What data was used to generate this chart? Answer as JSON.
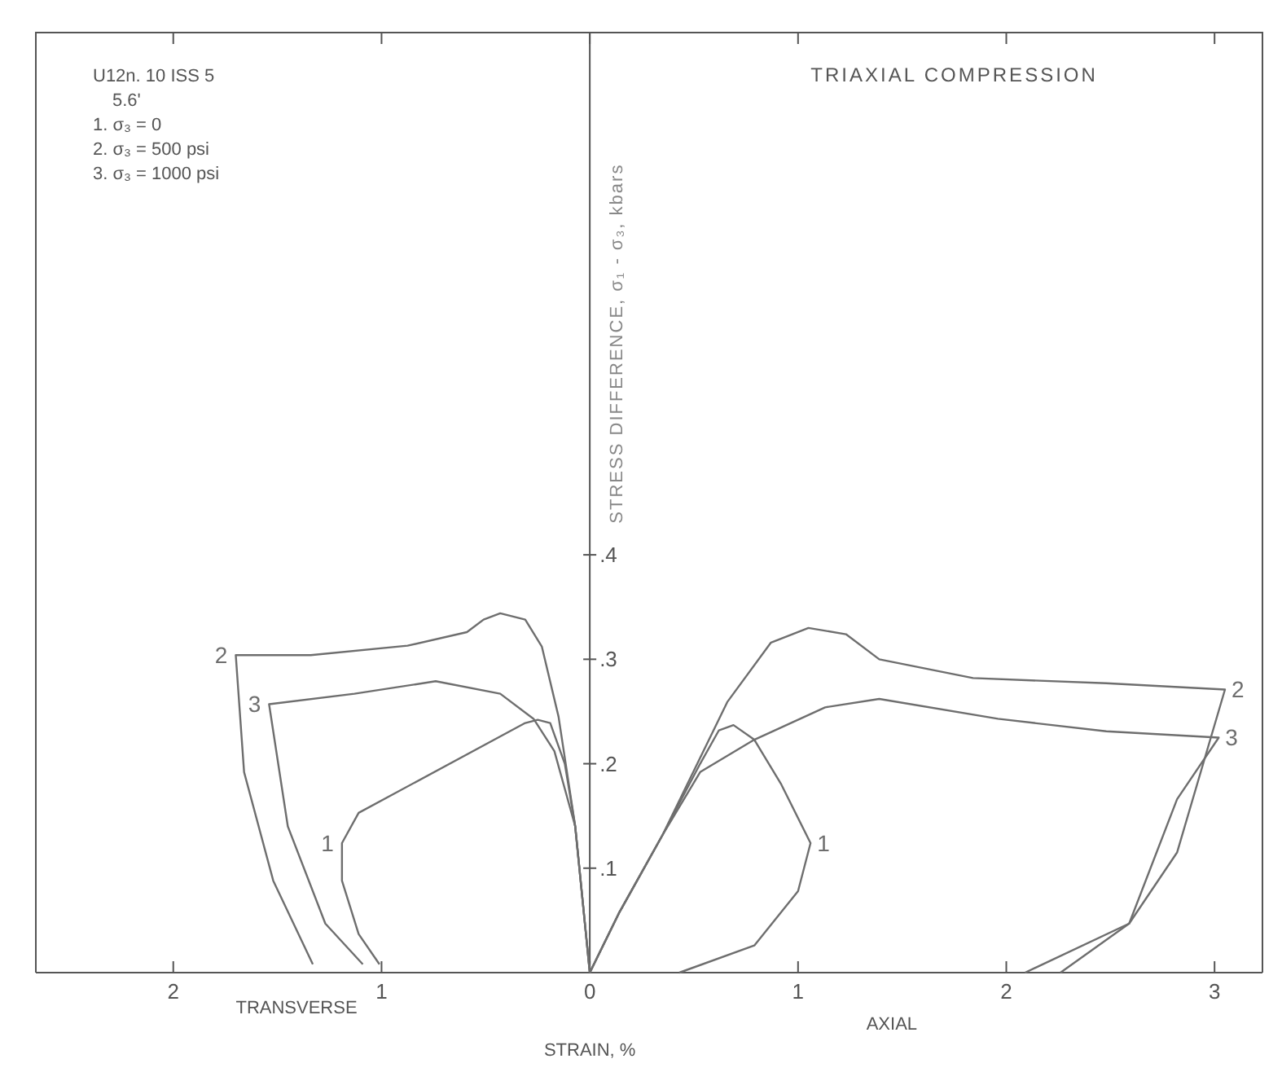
{
  "chart_data": {
    "type": "line",
    "title": "TRIAXIAL COMPRESSION",
    "xlabel": "STRAIN, %",
    "ylabel": "STRESS DIFFERENCE, σ₁ - σ₃, kbars",
    "annotations": [
      "U12n. 10 ISS 5",
      "5.6'",
      "1. σ₃ = 0",
      "2. σ₃ = 500 psi",
      "3. σ₃ = 1000 psi",
      "TRANSVERSE",
      "AXIAL"
    ],
    "xlim": [
      -2.66,
      3.23
    ],
    "ylim": [
      0,
      0.9
    ],
    "xticks": [
      {
        "value": -2,
        "label": "2"
      },
      {
        "value": -1,
        "label": "1"
      },
      0,
      1,
      2,
      3
    ],
    "yticks": [
      {
        "value": 0.1,
        "label": ".1"
      },
      {
        "value": 0.2,
        "label": ".2"
      },
      {
        "value": 0.3,
        "label": ".3"
      },
      {
        "value": 0.4,
        "label": ".4"
      }
    ],
    "grid": false,
    "marker": "none",
    "line_style": "solid",
    "series": [
      {
        "name": "1",
        "color": "#6e6e6e",
        "x": [
          0,
          -0.02,
          -0.07,
          -0.12,
          -0.19,
          -0.25,
          -0.31,
          -1.11,
          -1.19,
          -1.19,
          -1.11,
          -1.01
        ],
        "values": [
          0,
          0.04,
          0.14,
          0.2,
          0.239,
          0.242,
          0.239,
          0.153,
          0.124,
          0.088,
          0.037,
          0.008
        ]
      },
      {
        "name": "2",
        "color": "#6e6e6e",
        "x": [
          0,
          -0.02,
          -0.07,
          -0.15,
          -0.23,
          -0.31,
          -0.43,
          -0.51,
          -0.59,
          -0.875,
          -1.34,
          -1.7,
          -1.66,
          -1.52,
          -1.33
        ],
        "values": [
          0,
          0.04,
          0.14,
          0.245,
          0.312,
          0.338,
          0.344,
          0.338,
          0.326,
          0.313,
          0.304,
          0.304,
          0.192,
          0.088,
          0.008
        ]
      },
      {
        "name": "3",
        "color": "#6e6e6e",
        "x": [
          0,
          -0.02,
          -0.07,
          -0.17,
          -0.27,
          -0.43,
          -0.74,
          -1.13,
          -1.54,
          -1.45,
          -1.27,
          -1.09
        ],
        "values": [
          0,
          0.04,
          0.14,
          0.212,
          0.243,
          0.267,
          0.279,
          0.267,
          0.257,
          0.14,
          0.047,
          0.008
        ]
      },
      {
        "name": "1",
        "color": "#6e6e6e",
        "x": [
          0,
          0.14,
          0.35,
          0.53,
          0.62,
          0.69,
          0.79,
          0.92,
          1.06,
          1.0,
          0.79,
          0.43
        ],
        "values": [
          0,
          0.057,
          0.132,
          0.2,
          0.232,
          0.237,
          0.223,
          0.18,
          0.124,
          0.078,
          0.026,
          0
        ]
      },
      {
        "name": "2",
        "color": "#6e6e6e",
        "x": [
          0,
          0.14,
          0.35,
          0.66,
          0.87,
          1.05,
          1.23,
          1.39,
          1.84,
          2.48,
          3.05,
          2.82,
          2.59,
          2.26
        ],
        "values": [
          0,
          0.057,
          0.132,
          0.259,
          0.316,
          0.33,
          0.324,
          0.3,
          0.282,
          0.277,
          0.271,
          0.115,
          0.047,
          0
        ]
      },
      {
        "name": "3",
        "color": "#6e6e6e",
        "x": [
          0,
          0.14,
          0.35,
          0.53,
          0.79,
          1.13,
          1.39,
          1.96,
          2.48,
          3.02,
          2.82,
          2.59,
          2.09
        ],
        "values": [
          0,
          0.057,
          0.132,
          0.192,
          0.223,
          0.254,
          0.262,
          0.243,
          0.231,
          0.225,
          0.166,
          0.047,
          0
        ]
      }
    ]
  }
}
